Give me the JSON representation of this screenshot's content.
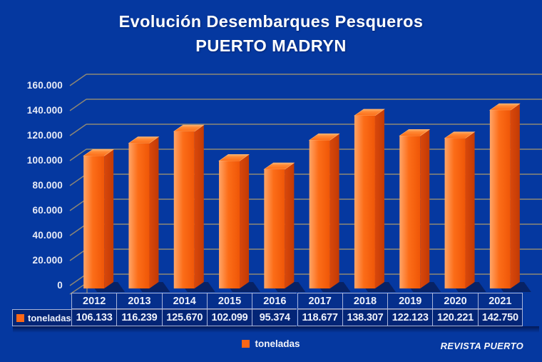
{
  "title": {
    "line1": "Evolución Desembarques Pesqueros",
    "line2": "PUERTO MADRYN"
  },
  "watermark": "REVISTA PUERTO",
  "legend": {
    "label": "toneladas",
    "swatch_color": "#fd6716"
  },
  "table": {
    "row_header": "toneladas",
    "years": [
      "2012",
      "2013",
      "2014",
      "2015",
      "2016",
      "2017",
      "2018",
      "2019",
      "2020",
      "2021"
    ],
    "values_display": [
      "106.133",
      "116.239",
      "125.670",
      "102.099",
      "95.374",
      "118.677",
      "138.307",
      "122.123",
      "120.221",
      "142.750"
    ]
  },
  "chart_data": {
    "type": "bar",
    "variant": "3d-column",
    "title": "Evolución Desembarques Pesqueros",
    "subtitle": "PUERTO MADRYN",
    "categories": [
      "2012",
      "2013",
      "2014",
      "2015",
      "2016",
      "2017",
      "2018",
      "2019",
      "2020",
      "2021"
    ],
    "series": [
      {
        "name": "toneladas",
        "values": [
          106133,
          116239,
          125670,
          102099,
          95374,
          118677,
          138307,
          122123,
          120221,
          142750
        ]
      }
    ],
    "xlabel": "",
    "ylabel": "",
    "ylim": [
      0,
      160000
    ],
    "y_tick_step": 20000,
    "y_tick_labels_top_to_bottom": [
      "160.000",
      "140.000",
      "120.000",
      "100.000",
      "80.000",
      "60.000",
      "40.000",
      "20.000",
      "0"
    ],
    "grid": true,
    "legend_position": "bottom",
    "data_table_shown": true,
    "colors": {
      "background": "#0538a0",
      "gridline": "#8f8774",
      "bar_front_light": "#ffa568",
      "bar_front": "#fc6d18",
      "bar_front_dark": "#ef5607",
      "bar_side": "#d9480b",
      "bar_side_dark": "#c23a05",
      "bar_top": "#ff8a36",
      "bar_top_edge": "#ffb570",
      "bar_shadow": "#081a4f",
      "table_border": "#a9b5da",
      "text": "#ffffff"
    }
  }
}
